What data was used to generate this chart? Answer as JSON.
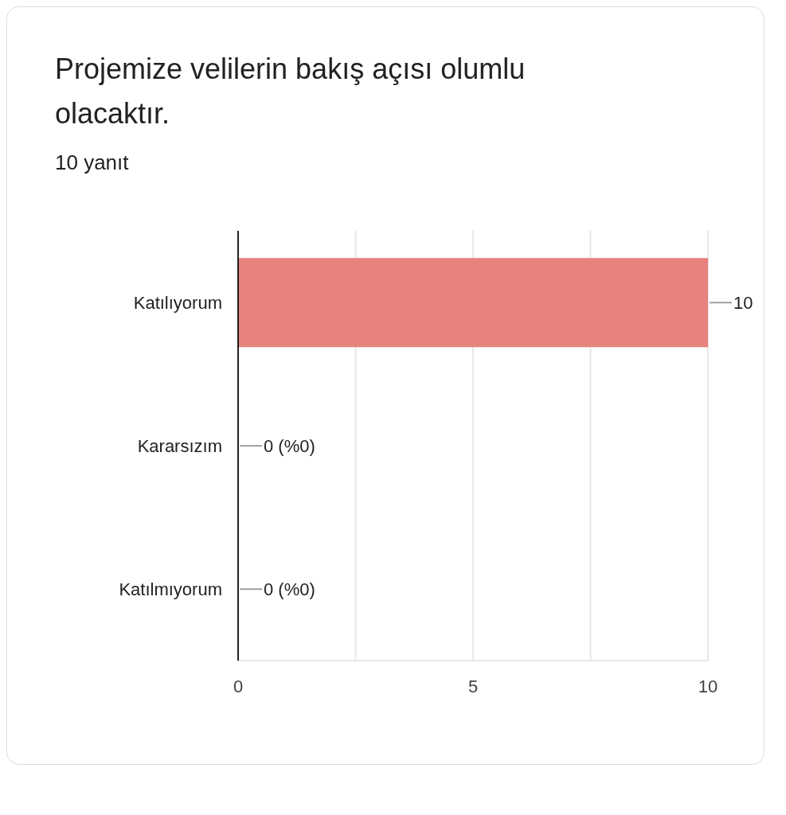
{
  "chart_data": {
    "type": "bar",
    "orientation": "horizontal",
    "title": "Projemize velilerin bakış açısı olumlu olacaktır.",
    "subtitle": "10 yanıt",
    "categories": [
      "Katılıyorum",
      "Kararsızım",
      "Katılmıyorum"
    ],
    "values": [
      10,
      0,
      0
    ],
    "color": "#e6837f",
    "value_labels": [
      "10",
      "0 (%0)",
      "0 (%0)"
    ],
    "xlim": [
      0,
      10
    ],
    "xticks": [
      0,
      {
        "value": 2.5,
        "label": null
      },
      5,
      {
        "value": 7.5,
        "label": null
      },
      10
    ],
    "grid": "x"
  }
}
